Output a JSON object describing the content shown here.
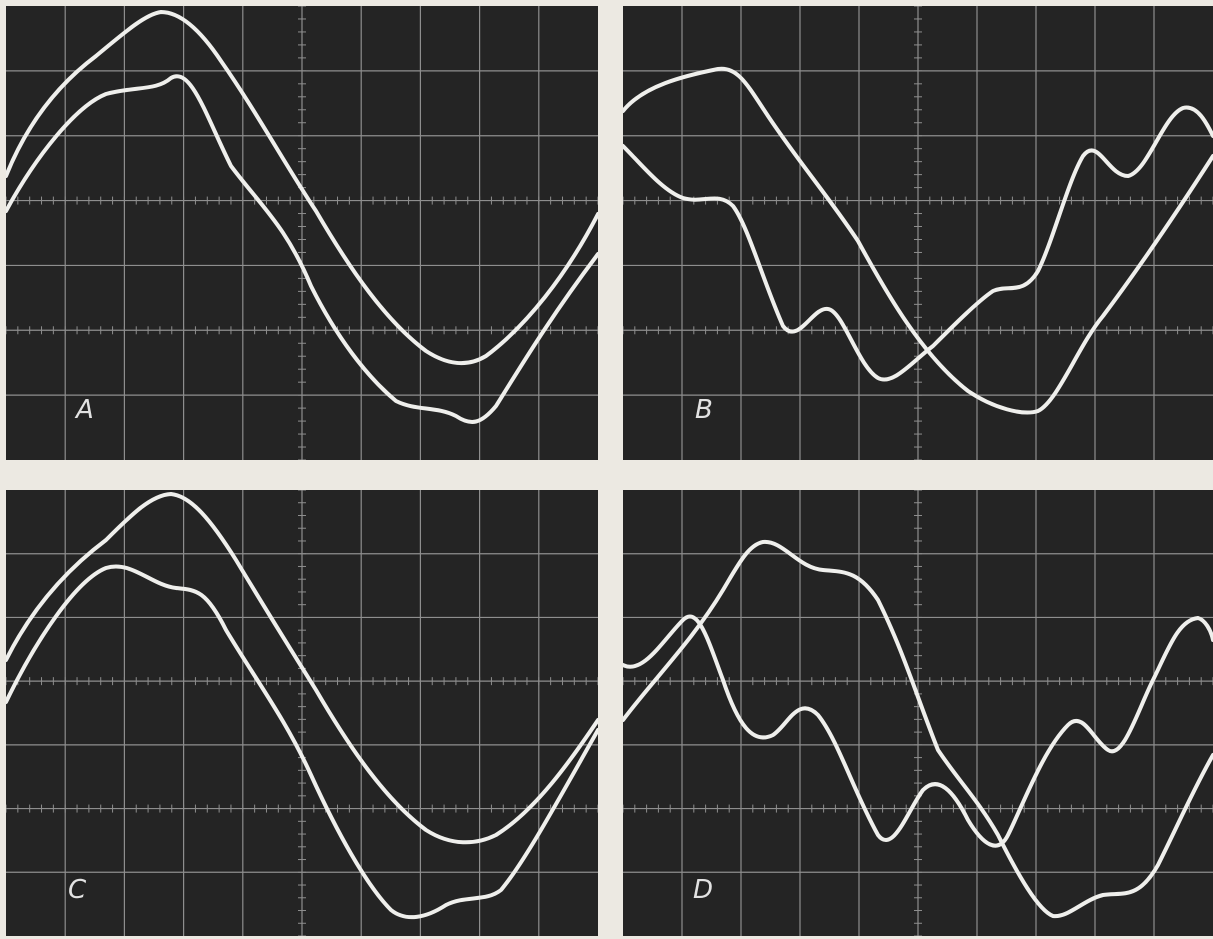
{
  "figure": {
    "panels": [
      {
        "id": "A",
        "label": "A"
      },
      {
        "id": "B",
        "label": "B"
      },
      {
        "id": "C",
        "label": "C"
      },
      {
        "id": "D",
        "label": "D"
      }
    ]
  },
  "colors": {
    "background": "#ece9e2",
    "screen": "#242424",
    "grid": "#8e8e8e",
    "trace": "#efefec"
  }
}
